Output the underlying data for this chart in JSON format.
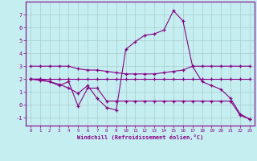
{
  "xlabel": "Windchill (Refroidissement éolien,°C)",
  "background_color": "#c5eef0",
  "grid_color": "#aacccc",
  "line_color": "#880088",
  "xlim": [
    -0.5,
    23.5
  ],
  "ylim": [
    -1.6,
    8.0
  ],
  "xticks": [
    0,
    1,
    2,
    3,
    4,
    5,
    6,
    7,
    8,
    9,
    10,
    11,
    12,
    13,
    14,
    15,
    16,
    17,
    18,
    19,
    20,
    21,
    22,
    23
  ],
  "yticks": [
    -1,
    0,
    1,
    2,
    3,
    4,
    5,
    6,
    7
  ],
  "line1_x": [
    0,
    1,
    2,
    3,
    4,
    5,
    6,
    7,
    8,
    9,
    10,
    11,
    12,
    13,
    14,
    15,
    16,
    17,
    18,
    19,
    20,
    21,
    22,
    23
  ],
  "line1_y": [
    3.0,
    3.0,
    3.0,
    3.0,
    3.0,
    2.8,
    2.7,
    2.7,
    2.6,
    2.5,
    2.4,
    2.4,
    2.4,
    2.4,
    2.5,
    2.6,
    2.7,
    3.0,
    3.0,
    3.0,
    3.0,
    3.0,
    3.0,
    3.0
  ],
  "line2_x": [
    0,
    1,
    2,
    3,
    4,
    5,
    6,
    7,
    8,
    9,
    10,
    11,
    12,
    13,
    14,
    15,
    16,
    17,
    18,
    19,
    20,
    21,
    22,
    23
  ],
  "line2_y": [
    2.0,
    2.0,
    2.0,
    2.0,
    2.0,
    2.0,
    2.0,
    2.0,
    2.0,
    2.0,
    2.0,
    2.0,
    2.0,
    2.0,
    2.0,
    2.0,
    2.0,
    2.0,
    2.0,
    2.0,
    2.0,
    2.0,
    2.0,
    2.0
  ],
  "line3_x": [
    0,
    1,
    2,
    3,
    4,
    5,
    6,
    7,
    8,
    9,
    10,
    11,
    12,
    13,
    14,
    15,
    16,
    17,
    18,
    19,
    20,
    21,
    22,
    23
  ],
  "line3_y": [
    2.0,
    1.9,
    1.8,
    1.6,
    1.3,
    0.9,
    1.5,
    0.5,
    -0.2,
    -0.4,
    4.3,
    4.9,
    5.4,
    5.5,
    5.8,
    7.3,
    6.5,
    3.0,
    1.8,
    1.5,
    1.2,
    0.5,
    -0.7,
    -1.1
  ],
  "line4_x": [
    0,
    1,
    2,
    3,
    4,
    5,
    6,
    7,
    8,
    9,
    10,
    11,
    12,
    13,
    14,
    15,
    16,
    17,
    18,
    19,
    20,
    21,
    22,
    23
  ],
  "line4_y": [
    2.0,
    2.0,
    1.8,
    1.5,
    1.8,
    -0.1,
    1.3,
    1.3,
    0.3,
    0.3,
    0.3,
    0.3,
    0.3,
    0.3,
    0.3,
    0.3,
    0.3,
    0.3,
    0.3,
    0.3,
    0.3,
    0.3,
    -0.8,
    -1.1
  ]
}
